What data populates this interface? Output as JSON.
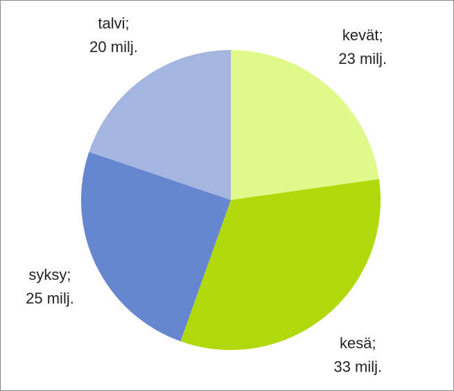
{
  "chart_data": {
    "type": "pie",
    "categories": [
      "kevät;",
      "kesä;",
      "syksy;",
      "talvi;"
    ],
    "values": [
      23,
      33,
      25,
      20
    ],
    "value_labels": [
      "23 milj.",
      "33 milj.",
      "25 milj.",
      "20 milj."
    ],
    "colors": [
      "#dff98a",
      "#b0d90b",
      "#6687cf",
      "#a4b6e0"
    ]
  }
}
